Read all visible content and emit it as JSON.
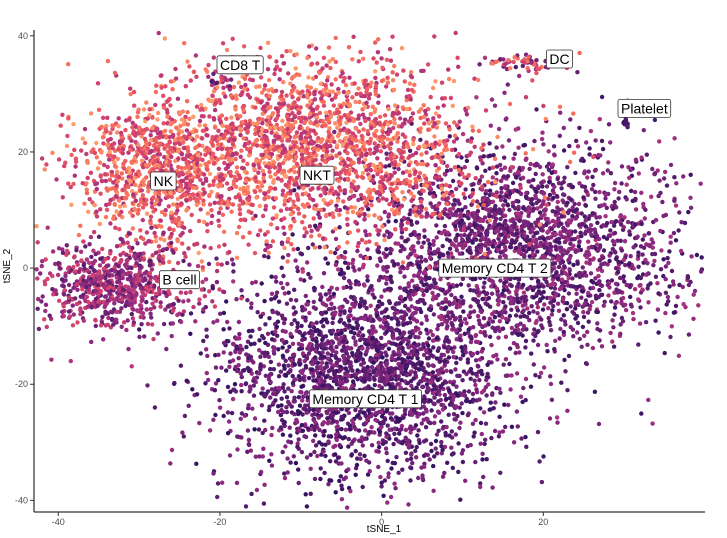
{
  "chart_data": {
    "type": "scatter",
    "title": "",
    "xlabel": "tSNE_1",
    "ylabel": "tSNE_2",
    "xlim": [
      -43,
      40
    ],
    "ylim": [
      -42,
      41
    ],
    "xticks": [
      -40,
      -20,
      0,
      20
    ],
    "yticks": [
      -40,
      -20,
      0,
      20,
      40
    ],
    "grid": false,
    "legend": "none",
    "point_color_scale": [
      "#2c115f",
      "#5a1d6f",
      "#8c2981",
      "#b73779",
      "#de4968",
      "#f7705c",
      "#fe9f6d"
    ],
    "clusters": [
      {
        "name": "Memory CD4 T 1",
        "label_x": -2,
        "label_y": -22.5,
        "center_x": -2,
        "center_y": -18,
        "sx": 9,
        "sy": 9,
        "n": 2300,
        "color_range": [
          0.02,
          0.38
        ]
      },
      {
        "name": "Memory CD4 T 2",
        "label_x": 14,
        "label_y": 0,
        "center_x": 17,
        "center_y": 4,
        "sx": 10,
        "sy": 9,
        "n": 2300,
        "color_range": [
          0.05,
          0.45
        ]
      },
      {
        "name": "NKT",
        "label_x": -8,
        "label_y": 16,
        "center_x": -8,
        "center_y": 21,
        "sx": 10,
        "sy": 8,
        "n": 2000,
        "color_range": [
          0.45,
          1.0
        ]
      },
      {
        "name": "NK",
        "label_x": -27,
        "label_y": 15,
        "center_x": -28,
        "center_y": 16,
        "sx": 5,
        "sy": 6,
        "n": 800,
        "color_range": [
          0.45,
          1.0
        ]
      },
      {
        "name": "B cell",
        "label_x": -25,
        "label_y": -2,
        "center_x": -33,
        "center_y": -3,
        "sx": 5,
        "sy": 3.5,
        "n": 700,
        "color_range": [
          0.15,
          0.65
        ]
      },
      {
        "name": "CD8 T",
        "label_x": -17.5,
        "label_y": 35,
        "center_x": -20,
        "center_y": 32.5,
        "sx": 0.9,
        "sy": 1.2,
        "n": 25,
        "color_range": [
          0.1,
          0.7
        ]
      },
      {
        "name": "DC",
        "label_x": 22,
        "label_y": 36,
        "center_x": 18,
        "center_y": 35.5,
        "sx": 3,
        "sy": 0.7,
        "n": 70,
        "color_range": [
          0.1,
          0.95
        ]
      },
      {
        "name": "Platelet",
        "label_x": 32.5,
        "label_y": 27.5,
        "center_x": 30,
        "center_y": 25,
        "sx": 0.3,
        "sy": 0.4,
        "n": 12,
        "color_range": [
          0.05,
          0.15
        ]
      }
    ]
  }
}
